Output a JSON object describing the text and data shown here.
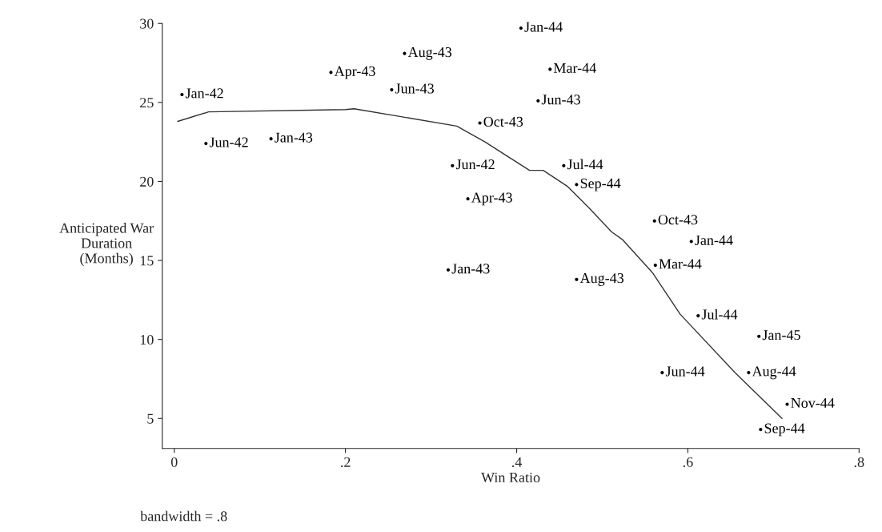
{
  "chart_data": {
    "type": "scatter",
    "xlabel": "Win Ratio",
    "ylabel": "Anticipated War\nDuration\n(Months)",
    "annotations": [
      "bandwidth = .8"
    ],
    "xlim": [
      -0.014,
      0.8
    ],
    "ylim": [
      3.1,
      30
    ],
    "xticks": [
      0,
      {
        "value": 0.2,
        "label": ".2"
      },
      {
        "value": 0.4,
        "label": ".4"
      },
      {
        "value": 0.6,
        "label": ".6"
      },
      {
        "value": 0.8,
        "label": ".8"
      }
    ],
    "yticks": [
      5,
      10,
      15,
      20,
      25,
      30
    ],
    "grid": false,
    "series": [
      {
        "marker": "circle",
        "color": "#000000",
        "x": [
          0.009,
          0.037,
          0.113,
          0.183,
          0.269,
          0.254,
          0.325,
          0.343,
          0.405,
          0.439,
          0.425,
          0.357,
          0.455,
          0.47,
          0.561,
          0.604,
          0.32,
          0.562,
          0.47,
          0.612,
          0.683,
          0.57,
          0.671,
          0.716,
          0.685
        ],
        "values": [
          25.5,
          22.4,
          22.7,
          26.9,
          28.1,
          25.8,
          21.0,
          18.9,
          29.7,
          27.1,
          25.1,
          23.7,
          21.0,
          19.8,
          17.5,
          16.2,
          14.4,
          14.7,
          13.8,
          11.5,
          10.2,
          7.9,
          7.9,
          5.9,
          4.3
        ],
        "value_labels": [
          "Jan-42",
          "Jun-42",
          "Jan-43",
          "Apr-43",
          "Aug-43",
          "Jun-43",
          "Jun-42",
          "Apr-43",
          "Jan-44",
          "Mar-44",
          "Jun-43",
          "Oct-43",
          "Jul-44",
          "Sep-44",
          "Oct-43",
          "Jan-44",
          "Jan-43",
          "Mar-44",
          "Aug-43",
          "Jul-44",
          "Jan-45",
          "Jun-44",
          "Aug-44",
          "Nov-44",
          "Sep-44"
        ]
      },
      {
        "type": "line",
        "line_style": "solid",
        "color": "#333333",
        "x": [
          0.004,
          0.04,
          0.2,
          0.21,
          0.33,
          0.363,
          0.415,
          0.431,
          0.459,
          0.485,
          0.511,
          0.524,
          0.559,
          0.591,
          0.655,
          0.71
        ],
        "values": [
          23.8,
          24.4,
          24.55,
          24.6,
          23.5,
          22.5,
          20.7,
          20.7,
          19.7,
          18.3,
          16.8,
          16.3,
          14.2,
          11.6,
          7.9,
          5.0
        ]
      }
    ]
  }
}
